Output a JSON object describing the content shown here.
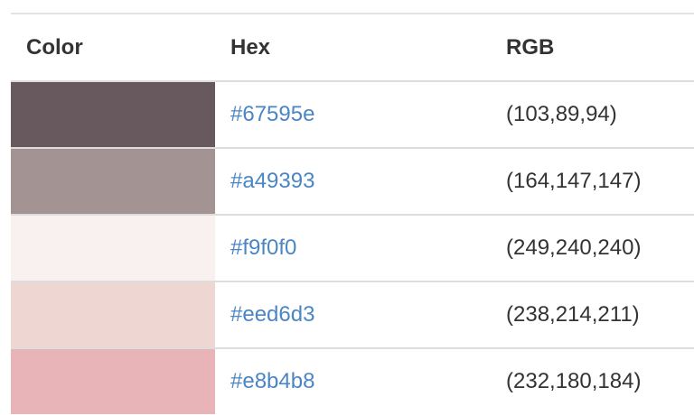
{
  "table": {
    "headers": {
      "color": "Color",
      "hex": "Hex",
      "rgb": "RGB"
    },
    "rows": [
      {
        "color": "#67595e",
        "hex": "#67595e",
        "rgb": "(103,89,94)"
      },
      {
        "color": "#a49393",
        "hex": "#a49393",
        "rgb": "(164,147,147)"
      },
      {
        "color": "#f9f0f0",
        "hex": "#f9f0f0",
        "rgb": "(249,240,240)"
      },
      {
        "color": "#eed6d3",
        "hex": "#eed6d3",
        "rgb": "(238,214,211)"
      },
      {
        "color": "#e8b4b8",
        "hex": "#e8b4b8",
        "rgb": "(232,180,184)"
      }
    ]
  },
  "colors": {
    "link": "#4b86c4",
    "text": "#333333",
    "divider": "#dddddd"
  }
}
